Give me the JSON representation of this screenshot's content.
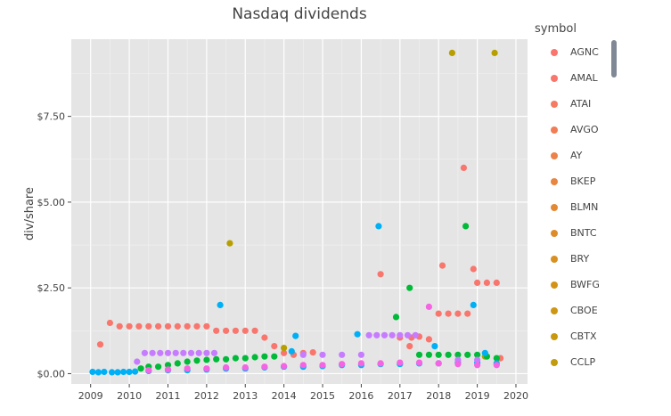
{
  "chart_data": {
    "type": "scatter",
    "title": "Nasdaq dividends",
    "xlabel": "",
    "ylabel": "div/share",
    "xlim": [
      2008.5,
      2020.3
    ],
    "ylim": [
      -0.3,
      9.75
    ],
    "x_ticks": [
      "2009",
      "2010",
      "2011",
      "2012",
      "2013",
      "2014",
      "2015",
      "2016",
      "2017",
      "2018",
      "2019",
      "2020"
    ],
    "y_ticks": [
      0,
      2.5,
      5,
      7.5
    ],
    "y_tick_labels": [
      "$0.00",
      "$2.50",
      "$5.00",
      "$7.50"
    ],
    "grid": true,
    "legend_title": "symbol",
    "legend_position": "right",
    "legend": [
      {
        "name": "AGNC",
        "color": "#f8766d"
      },
      {
        "name": "AMAL",
        "color": "#f8766d"
      },
      {
        "name": "ATAI",
        "color": "#f47a61"
      },
      {
        "name": "AVGO",
        "color": "#f07d55"
      },
      {
        "name": "AY",
        "color": "#ec8249"
      },
      {
        "name": "BKEP",
        "color": "#e8853f"
      },
      {
        "name": "BLMN",
        "color": "#e48933"
      },
      {
        "name": "BNTC",
        "color": "#df8c28"
      },
      {
        "name": "BRY",
        "color": "#d99020"
      },
      {
        "name": "BWFG",
        "color": "#d49318"
      },
      {
        "name": "CBOE",
        "color": "#ce9612"
      },
      {
        "name": "CBTX",
        "color": "#c8990f"
      },
      {
        "name": "CCLP",
        "color": "#c29b0e"
      }
    ],
    "series": [
      {
        "name": "salmon",
        "color": "#f8766d",
        "points": [
          [
            2009.25,
            0.85
          ],
          [
            2009.5,
            1.48
          ],
          [
            2009.75,
            1.38
          ],
          [
            2010.0,
            1.38
          ],
          [
            2010.25,
            1.38
          ],
          [
            2010.5,
            1.38
          ],
          [
            2010.75,
            1.38
          ],
          [
            2011.0,
            1.38
          ],
          [
            2011.25,
            1.38
          ],
          [
            2011.5,
            1.38
          ],
          [
            2011.75,
            1.38
          ],
          [
            2012.0,
            1.38
          ],
          [
            2012.25,
            1.25
          ],
          [
            2012.5,
            1.25
          ],
          [
            2012.75,
            1.25
          ],
          [
            2013.0,
            1.25
          ],
          [
            2013.25,
            1.25
          ],
          [
            2013.5,
            1.05
          ],
          [
            2013.75,
            0.8
          ],
          [
            2014.0,
            0.6
          ],
          [
            2014.25,
            0.55
          ],
          [
            2014.5,
            0.6
          ],
          [
            2014.75,
            0.62
          ],
          [
            2016.5,
            2.9
          ],
          [
            2017.0,
            1.05
          ],
          [
            2017.25,
            0.8
          ],
          [
            2017.3,
            1.05
          ],
          [
            2017.5,
            1.08
          ],
          [
            2017.75,
            1.0
          ],
          [
            2018.0,
            1.75
          ],
          [
            2018.1,
            3.15
          ],
          [
            2018.25,
            1.75
          ],
          [
            2018.5,
            1.75
          ],
          [
            2018.65,
            6.0
          ],
          [
            2018.75,
            1.75
          ],
          [
            2018.9,
            3.05
          ],
          [
            2019.0,
            2.65
          ],
          [
            2019.25,
            2.65
          ],
          [
            2019.5,
            2.65
          ],
          [
            2019.6,
            0.45
          ]
        ]
      },
      {
        "name": "olive",
        "color": "#b79f00",
        "points": [
          [
            2012.6,
            3.8
          ],
          [
            2014.0,
            0.75
          ],
          [
            2018.35,
            9.35
          ],
          [
            2019.45,
            9.35
          ],
          [
            2019.2,
            0.5
          ]
        ]
      },
      {
        "name": "green",
        "color": "#00ba38",
        "points": [
          [
            2010.3,
            0.15
          ],
          [
            2010.5,
            0.2
          ],
          [
            2010.75,
            0.2
          ],
          [
            2011.0,
            0.25
          ],
          [
            2011.25,
            0.3
          ],
          [
            2011.5,
            0.35
          ],
          [
            2011.75,
            0.38
          ],
          [
            2012.0,
            0.4
          ],
          [
            2012.25,
            0.42
          ],
          [
            2012.5,
            0.42
          ],
          [
            2012.75,
            0.45
          ],
          [
            2013.0,
            0.45
          ],
          [
            2013.25,
            0.48
          ],
          [
            2013.5,
            0.5
          ],
          [
            2013.75,
            0.5
          ],
          [
            2016.9,
            1.65
          ],
          [
            2017.25,
            2.5
          ],
          [
            2018.7,
            4.3
          ],
          [
            2017.5,
            0.55
          ],
          [
            2017.75,
            0.55
          ],
          [
            2018.0,
            0.55
          ],
          [
            2018.25,
            0.55
          ],
          [
            2018.5,
            0.55
          ],
          [
            2018.75,
            0.55
          ],
          [
            2019.0,
            0.55
          ],
          [
            2019.25,
            0.5
          ],
          [
            2019.5,
            0.45
          ]
        ]
      },
      {
        "name": "blue",
        "color": "#00b0f6",
        "points": [
          [
            2009.05,
            0.05
          ],
          [
            2009.2,
            0.04
          ],
          [
            2009.35,
            0.05
          ],
          [
            2009.55,
            0.04
          ],
          [
            2009.7,
            0.04
          ],
          [
            2009.85,
            0.05
          ],
          [
            2010.0,
            0.05
          ],
          [
            2010.15,
            0.06
          ],
          [
            2012.35,
            2.0
          ],
          [
            2014.3,
            1.1
          ],
          [
            2014.2,
            0.65
          ],
          [
            2015.9,
            1.15
          ],
          [
            2016.45,
            4.3
          ],
          [
            2017.9,
            0.8
          ],
          [
            2018.9,
            2.0
          ],
          [
            2019.2,
            0.6
          ],
          [
            2010.5,
            0.08
          ],
          [
            2011.0,
            0.1
          ],
          [
            2011.5,
            0.1
          ],
          [
            2012.0,
            0.12
          ],
          [
            2012.5,
            0.15
          ],
          [
            2013.0,
            0.15
          ],
          [
            2013.5,
            0.18
          ],
          [
            2014.0,
            0.2
          ],
          [
            2014.5,
            0.2
          ],
          [
            2015.0,
            0.22
          ],
          [
            2015.5,
            0.25
          ],
          [
            2016.0,
            0.25
          ],
          [
            2016.5,
            0.28
          ],
          [
            2017.0,
            0.28
          ],
          [
            2017.5,
            0.3
          ],
          [
            2018.0,
            0.3
          ],
          [
            2018.5,
            0.32
          ],
          [
            2019.0,
            0.32
          ],
          [
            2019.5,
            0.3
          ]
        ]
      },
      {
        "name": "purple",
        "color": "#c77cff",
        "points": [
          [
            2010.4,
            0.6
          ],
          [
            2010.6,
            0.6
          ],
          [
            2010.8,
            0.6
          ],
          [
            2011.0,
            0.6
          ],
          [
            2011.2,
            0.6
          ],
          [
            2011.4,
            0.6
          ],
          [
            2011.6,
            0.6
          ],
          [
            2011.8,
            0.6
          ],
          [
            2012.0,
            0.6
          ],
          [
            2012.2,
            0.6
          ],
          [
            2016.2,
            1.12
          ],
          [
            2016.4,
            1.12
          ],
          [
            2016.6,
            1.12
          ],
          [
            2016.8,
            1.12
          ],
          [
            2017.0,
            1.12
          ],
          [
            2017.2,
            1.12
          ],
          [
            2017.4,
            1.12
          ],
          [
            2010.2,
            0.35
          ],
          [
            2014.5,
            0.55
          ],
          [
            2015.0,
            0.55
          ],
          [
            2015.5,
            0.55
          ],
          [
            2016.0,
            0.55
          ],
          [
            2018.5,
            0.4
          ],
          [
            2019.0,
            0.4
          ]
        ]
      },
      {
        "name": "pink",
        "color": "#f564e3",
        "points": [
          [
            2017.75,
            1.95
          ],
          [
            2010.5,
            0.1
          ],
          [
            2011.0,
            0.12
          ],
          [
            2011.5,
            0.15
          ],
          [
            2012.0,
            0.15
          ],
          [
            2012.5,
            0.18
          ],
          [
            2013.0,
            0.18
          ],
          [
            2013.5,
            0.2
          ],
          [
            2014.0,
            0.22
          ],
          [
            2014.5,
            0.25
          ],
          [
            2015.0,
            0.25
          ],
          [
            2015.5,
            0.28
          ],
          [
            2016.0,
            0.3
          ],
          [
            2016.5,
            0.3
          ],
          [
            2017.0,
            0.32
          ],
          [
            2017.5,
            0.32
          ],
          [
            2018.0,
            0.3
          ],
          [
            2018.5,
            0.28
          ],
          [
            2019.0,
            0.25
          ],
          [
            2019.5,
            0.25
          ]
        ]
      }
    ]
  }
}
